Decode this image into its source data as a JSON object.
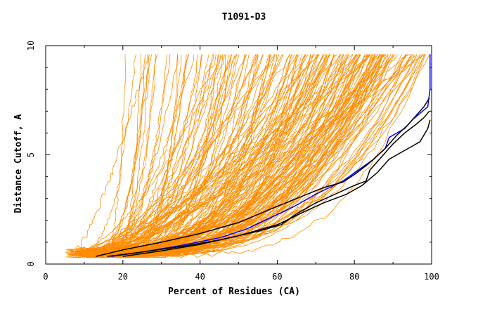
{
  "chart_data": {
    "type": "line",
    "title": "T1091-D3",
    "xlabel": "Percent of Residues (CA)",
    "ylabel": "Distance Cutoff, A",
    "xlim": [
      0,
      100
    ],
    "ylim": [
      0,
      10
    ],
    "x_ticks": [
      "0",
      "20",
      "40",
      "60",
      "80",
      "100"
    ],
    "y_ticks": [
      "0",
      "5",
      "10"
    ],
    "grid": false,
    "colors": {
      "background_models": "#ff8c00",
      "highlight_model": "#0000ff",
      "reference_models": "#000000"
    },
    "series": [
      {
        "color": "#0000ff",
        "x": [
          17,
          25,
          35,
          45,
          52,
          58,
          64,
          70,
          77,
          81,
          85,
          88,
          89,
          91,
          93,
          95,
          97,
          99,
          99.6,
          99.6
        ],
        "y": [
          0.35,
          0.55,
          0.85,
          1.2,
          1.6,
          2.1,
          2.6,
          3.2,
          3.8,
          4.3,
          4.8,
          5.3,
          5.8,
          6.0,
          6.2,
          6.6,
          6.9,
          7.2,
          8.0,
          9.6
        ]
      },
      {
        "color": "#000000",
        "x": [
          13,
          20,
          30,
          40,
          50,
          58,
          65,
          72,
          77,
          80,
          83,
          85,
          88,
          91,
          94,
          96,
          98,
          99.4
        ],
        "y": [
          0.35,
          0.65,
          1.0,
          1.4,
          1.9,
          2.5,
          3.0,
          3.5,
          3.75,
          4.1,
          4.5,
          4.8,
          5.3,
          5.9,
          6.4,
          6.8,
          7.2,
          7.6
        ]
      },
      {
        "color": "#000000",
        "x": [
          16,
          25,
          35,
          45,
          55,
          61,
          65,
          70,
          75,
          80,
          83,
          84,
          87,
          90,
          93,
          96,
          98,
          99.4
        ],
        "y": [
          0.35,
          0.55,
          0.8,
          1.1,
          1.5,
          1.8,
          2.3,
          2.8,
          3.2,
          3.6,
          3.8,
          4.3,
          4.9,
          5.5,
          6.0,
          6.4,
          6.7,
          7.0
        ]
      },
      {
        "color": "#000000",
        "x": [
          20,
          30,
          40,
          50,
          60,
          67,
          72,
          78,
          82,
          86,
          89,
          92,
          95,
          97,
          99,
          99.6
        ],
        "y": [
          0.35,
          0.6,
          0.9,
          1.3,
          1.8,
          2.4,
          2.8,
          3.2,
          3.6,
          4.2,
          4.8,
          5.1,
          5.4,
          5.6,
          6.2,
          6.6
        ]
      }
    ]
  }
}
